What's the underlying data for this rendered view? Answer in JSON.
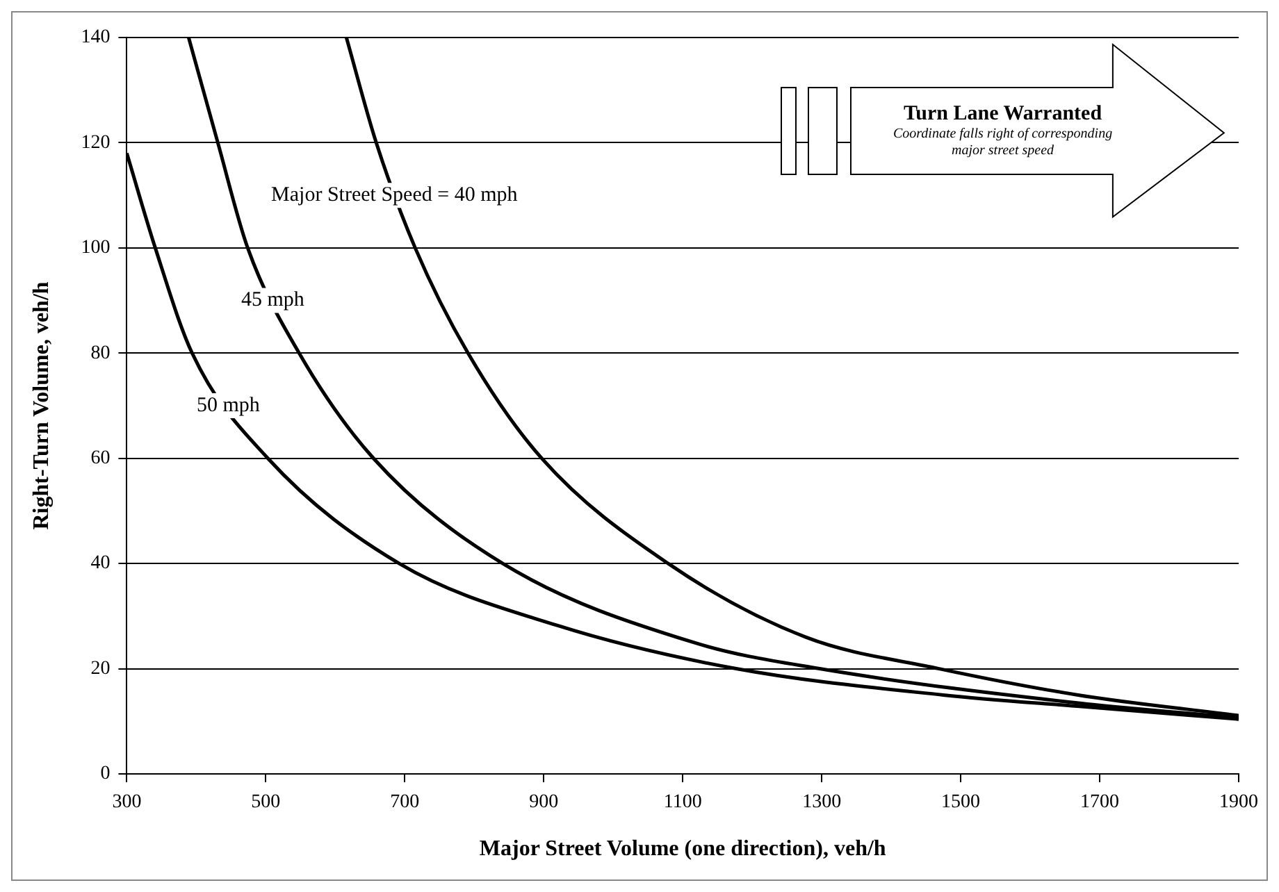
{
  "chart_data": {
    "type": "line",
    "xlabel": "Major Street Volume (one direction), veh/h",
    "ylabel": "Right-Turn Volume, veh/h",
    "xlim": [
      300,
      1900
    ],
    "xticks": [
      300,
      500,
      700,
      900,
      1100,
      1300,
      1500,
      1700,
      1900
    ],
    "ylim": [
      0,
      140
    ],
    "yticks": [
      0,
      20,
      40,
      60,
      80,
      100,
      120,
      140
    ],
    "grid": "y",
    "legend": false,
    "marker": "none",
    "line_style": "solid",
    "series": [
      {
        "color": "#000000",
        "x": [
          616,
          659,
          715,
          791,
          897,
          1079,
          1277,
          1469,
          1669,
          1900
        ],
        "values": [
          140,
          120,
          100,
          80,
          60,
          40,
          26,
          20,
          15,
          11.1
        ]
      },
      {
        "color": "#000000",
        "x": [
          389,
          431,
          474,
          548,
          655,
          841,
          1118,
          1297,
          1674,
          1900
        ],
        "values": [
          140,
          120,
          100,
          80,
          60,
          40,
          24.9,
          20,
          13.4,
          10.7
        ]
      },
      {
        "color": "#000000",
        "x": [
          300,
          341,
          394,
          503,
          692,
          920,
          1177,
          1475,
          1674,
          1900
        ],
        "values": [
          118,
          100,
          80,
          60,
          40,
          28.2,
          20,
          15,
          12.8,
          10.4
        ]
      }
    ],
    "annotations": [
      {
        "text": "Major Street Speed = 40 mph",
        "x": 685,
        "y": 110
      },
      {
        "text": "45 mph",
        "x": 510,
        "y": 90
      },
      {
        "text": "50 mph",
        "x": 446,
        "y": 70
      },
      "Turn Lane Warranted",
      "Coordinate falls right of corresponding major street speed"
    ]
  }
}
